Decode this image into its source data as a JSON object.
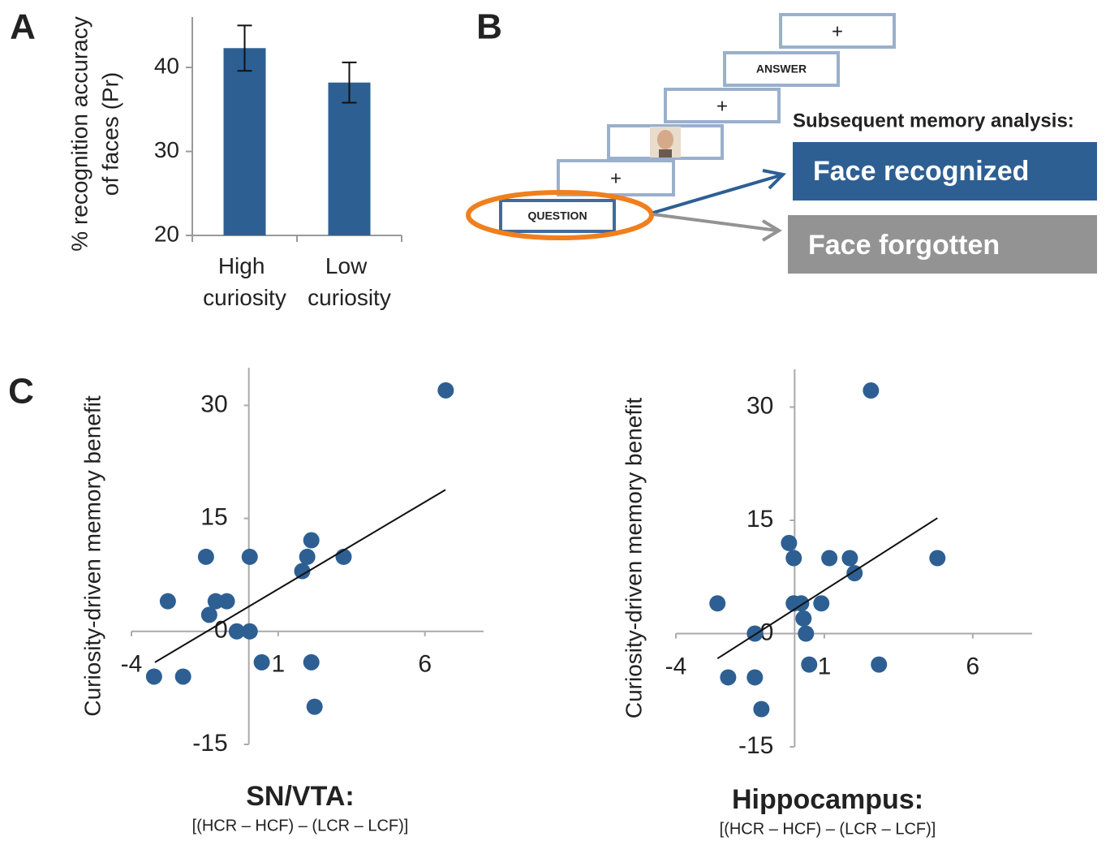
{
  "panels": [
    "A",
    "B",
    "C"
  ],
  "chart_data": [
    {
      "type": "bar",
      "ylabel": [
        "% recognition accuracy",
        "of faces (Pr)"
      ],
      "categories": [
        "High curiosity",
        "Low curiosity"
      ],
      "values": [
        42.3,
        38.2
      ],
      "errors": [
        2.7,
        2.4
      ],
      "color": "#2e5f93",
      "ylim": [
        20,
        46
      ],
      "yticks": [
        20,
        30,
        40
      ]
    },
    {
      "type": "scatter",
      "ylabel": "Curiosity-driven memory benefit",
      "xlabel": "SN/VTA:",
      "xlabel_sub": "[(HCR – HCF) – (LCR – LCF)]",
      "color": "#2e5f93",
      "xlim": [
        -4,
        8
      ],
      "ylim": [
        -15,
        35
      ],
      "xticks": [
        -4,
        1,
        6
      ],
      "yticks": [
        30,
        15,
        0,
        -15
      ],
      "x": [
        6.71,
        -3.23,
        -2.24,
        -2.76,
        -1.46,
        0.03,
        -1.35,
        -1.13,
        -0.75,
        -0.41,
        0.03,
        0.44,
        2.13,
        1.99,
        1.82,
        3.23,
        2.13,
        2.24
      ],
      "y": [
        32.0,
        -6.0,
        -6.0,
        4.0,
        9.9,
        9.9,
        2.2,
        4.0,
        4.0,
        0,
        0,
        -4.1,
        12.1,
        9.9,
        8.0,
        9.9,
        -4.1,
        -10.0
      ],
      "trend": {
        "x": [
          -3.2,
          6.7
        ],
        "y": [
          -4.1,
          18.8
        ]
      }
    },
    {
      "type": "scatter",
      "ylabel": "Curiosity-driven memory benefit",
      "xlabel": "Hippocampus:",
      "xlabel_sub": "[(HCR – HCF) – (LCR – LCF)]",
      "color": "#2e5f93",
      "xlim": [
        -4,
        8
      ],
      "ylim": [
        -15,
        35
      ],
      "xticks": [
        -4,
        1,
        6
      ],
      "yticks": [
        30,
        15,
        0,
        -15
      ],
      "x": [
        2.57,
        -2.6,
        -2.24,
        -1.34,
        -1.12,
        -1.34,
        -0.19,
        -0.03,
        -0.03,
        0.22,
        0.3,
        0.38,
        0.49,
        0.9,
        1.17,
        1.86,
        2.02,
        2.84,
        4.81
      ],
      "y": [
        32.2,
        4.0,
        -5.8,
        -5.8,
        -10.0,
        0,
        12.0,
        10.0,
        4.0,
        4.0,
        2.0,
        0,
        -4.1,
        4.0,
        10.0,
        10.0,
        8.0,
        -4.1,
        10.0
      ],
      "trend": {
        "x": [
          -2.6,
          4.81
        ],
        "y": [
          -3.3,
          15.3
        ]
      }
    }
  ],
  "diagram": {
    "screens": [
      "+",
      "ANSWER",
      "+",
      "+",
      "QUESTION"
    ],
    "analysis_title": "Subsequent memory analysis:",
    "recognized": "Face recognized",
    "forgotten": "Face forgotten"
  }
}
